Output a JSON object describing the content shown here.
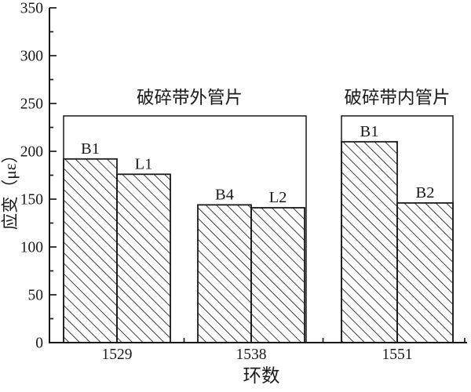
{
  "chart_data": {
    "type": "bar",
    "title": "",
    "xlabel": "环数",
    "ylabel": "应变（με）",
    "ylim": [
      0,
      350
    ],
    "ytick_major": 50,
    "ytick_minor": 25,
    "grid": false,
    "legend": "none",
    "background": "#ffffff",
    "line_color": "#1a1a1a",
    "bar_style": "white fill with black diagonal hatching (/)",
    "groups": [
      {
        "category": "1529",
        "bars": [
          {
            "label": "B1",
            "value": 192
          },
          {
            "label": "L1",
            "value": 176
          }
        ]
      },
      {
        "category": "1538",
        "bars": [
          {
            "label": "B4",
            "value": 144
          },
          {
            "label": "L2",
            "value": 141
          }
        ]
      },
      {
        "category": "1551",
        "bars": [
          {
            "label": "B1",
            "value": 210
          },
          {
            "label": "B2",
            "value": 146
          }
        ]
      }
    ],
    "group_boxes": [
      {
        "label": "破碎带外管片",
        "covers_categories": [
          "1529",
          "1538"
        ],
        "top_value": 237
      },
      {
        "label": "破碎带内管片",
        "covers_categories": [
          "1551"
        ],
        "top_value": 237
      }
    ]
  }
}
